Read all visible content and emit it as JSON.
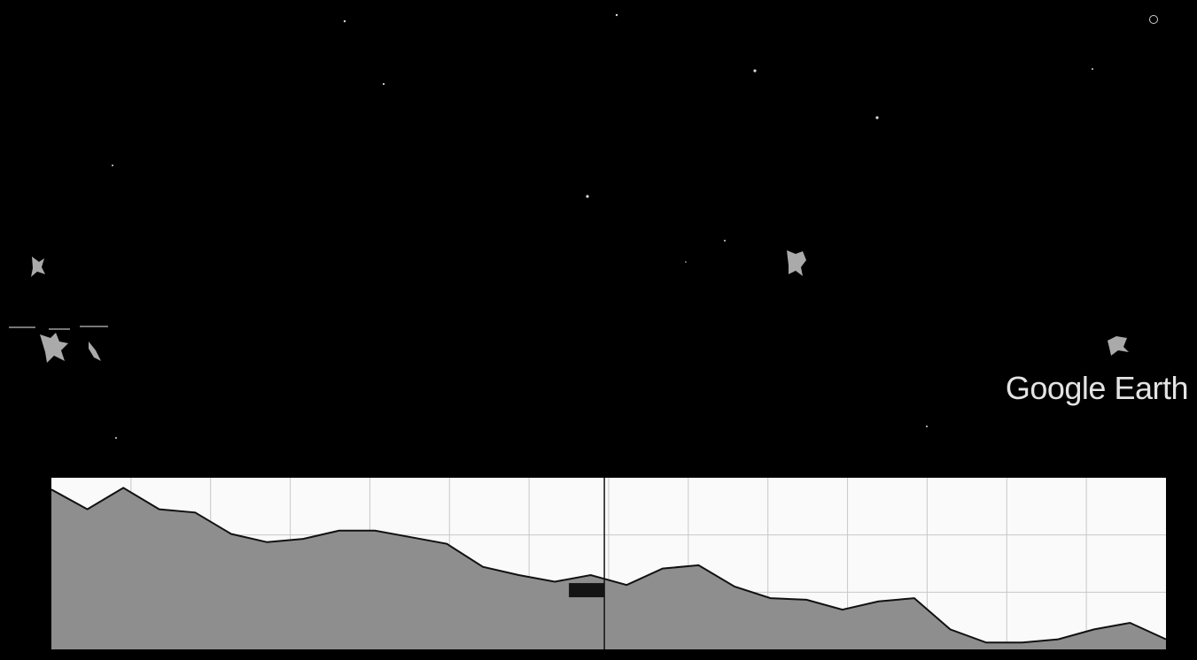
{
  "app": {
    "watermark": "Google Earth"
  },
  "elevation_profile": {
    "level_points": [
      0.95,
      0.83,
      0.96,
      0.83,
      0.81,
      0.68,
      0.63,
      0.65,
      0.7,
      0.7,
      0.66,
      0.62,
      0.48,
      0.43,
      0.39,
      0.43,
      0.37,
      0.47,
      0.49,
      0.36,
      0.29,
      0.28,
      0.22,
      0.27,
      0.29,
      0.1,
      0.02,
      0.02,
      0.04,
      0.1,
      0.14,
      0.04
    ],
    "marker_position": 0.45
  },
  "colors": {
    "background": "#000000",
    "panel_background": "#fafafa",
    "profile_fill": "#8e8e8e",
    "profile_line": "#111111",
    "grid_line": "#c8c8c8",
    "marker": "#141414"
  }
}
